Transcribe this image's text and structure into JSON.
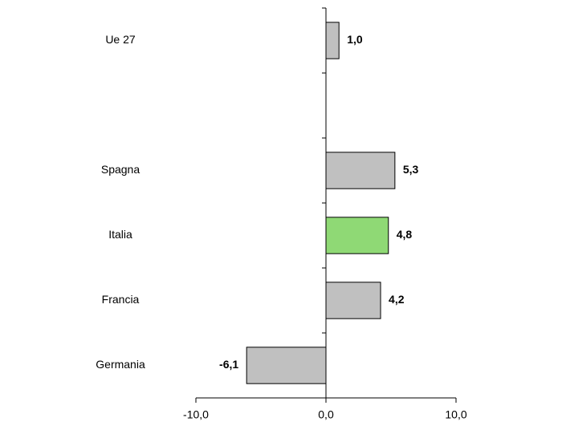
{
  "chart_data": {
    "type": "hbar",
    "categories": [
      "Ue 27",
      null,
      "Spagna",
      "Italia",
      "Francia",
      "Germania"
    ],
    "values": [
      1.0,
      null,
      5.3,
      4.8,
      4.2,
      -6.1
    ],
    "value_labels": [
      "1,0",
      null,
      "5,3",
      "4,8",
      "4,2",
      "-6,1"
    ],
    "colors": [
      "#c0c0c0",
      null,
      "#c0c0c0",
      "#8fd975",
      "#c0c0c0",
      "#c0c0c0"
    ],
    "xlim": [
      -10,
      10
    ],
    "xticks": [
      {
        "value": -10,
        "label": "-10,0"
      },
      {
        "value": 0,
        "label": "0,0"
      },
      {
        "value": 10,
        "label": "10,0"
      }
    ],
    "xtick_colors": [
      "#ff0000",
      "#000000",
      "#000000"
    ]
  }
}
